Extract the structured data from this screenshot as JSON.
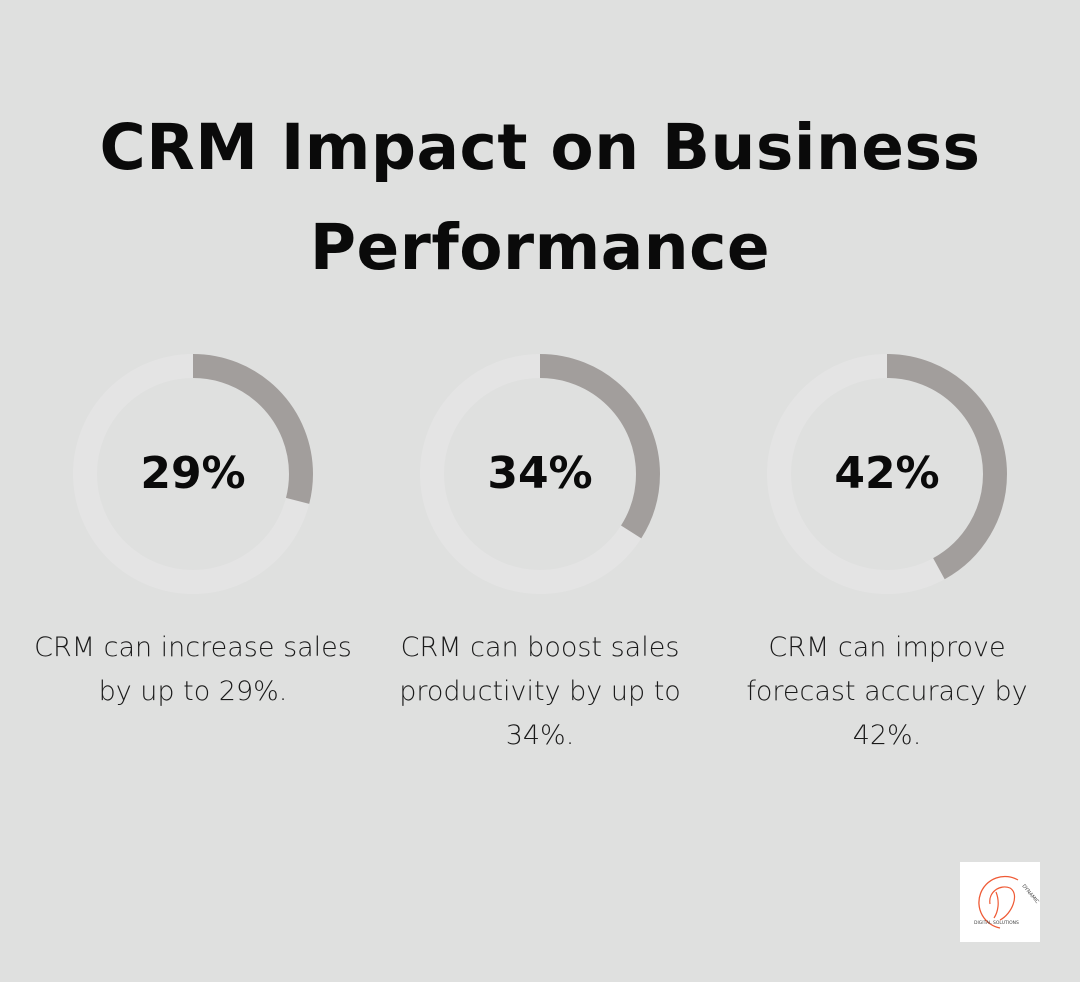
{
  "title": "CRM Impact on Business Performance",
  "colors": {
    "background": "#dfe0df",
    "track": "#e4e4e4",
    "arc": "#a29e9c",
    "logo_accent": "#ef5a35"
  },
  "chart_data": {
    "type": "gauge",
    "max": 100,
    "items": [
      {
        "value": 29,
        "label": "29%",
        "description": "CRM can increase sales by up to 29%."
      },
      {
        "value": 34,
        "label": "34%",
        "description": "CRM can boost sales productivity by up to 34%."
      },
      {
        "value": 42,
        "label": "42%",
        "description": "CRM can improve forecast accuracy by 42%."
      }
    ]
  },
  "logo": {
    "text": "DYNAMIC • DIGITAL SOLUTIONS",
    "icon": "dynamic-digital-solutions-logo"
  }
}
